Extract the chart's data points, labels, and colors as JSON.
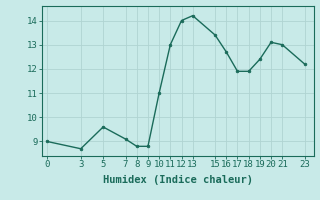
{
  "x": [
    0,
    3,
    5,
    7,
    8,
    9,
    10,
    11,
    12,
    13,
    15,
    16,
    17,
    18,
    19,
    20,
    21,
    23
  ],
  "y": [
    9.0,
    8.7,
    9.6,
    9.1,
    8.8,
    8.8,
    11.0,
    13.0,
    14.0,
    14.2,
    13.4,
    12.7,
    11.9,
    11.9,
    12.4,
    13.1,
    13.0,
    12.2
  ],
  "xticks": [
    0,
    3,
    5,
    7,
    8,
    9,
    10,
    11,
    12,
    13,
    15,
    16,
    17,
    18,
    19,
    20,
    21,
    23
  ],
  "yticks": [
    9,
    10,
    11,
    12,
    13,
    14
  ],
  "xlim": [
    -0.5,
    23.8
  ],
  "ylim": [
    8.4,
    14.6
  ],
  "xlabel": "Humidex (Indice chaleur)",
  "line_color": "#1a6b5a",
  "marker_color": "#1a6b5a",
  "bg_color": "#c8eae8",
  "grid_color": "#b0d4d2",
  "tick_color": "#1a6b5a",
  "font_family": "monospace",
  "tick_fontsize": 6.5,
  "xlabel_fontsize": 7.5
}
